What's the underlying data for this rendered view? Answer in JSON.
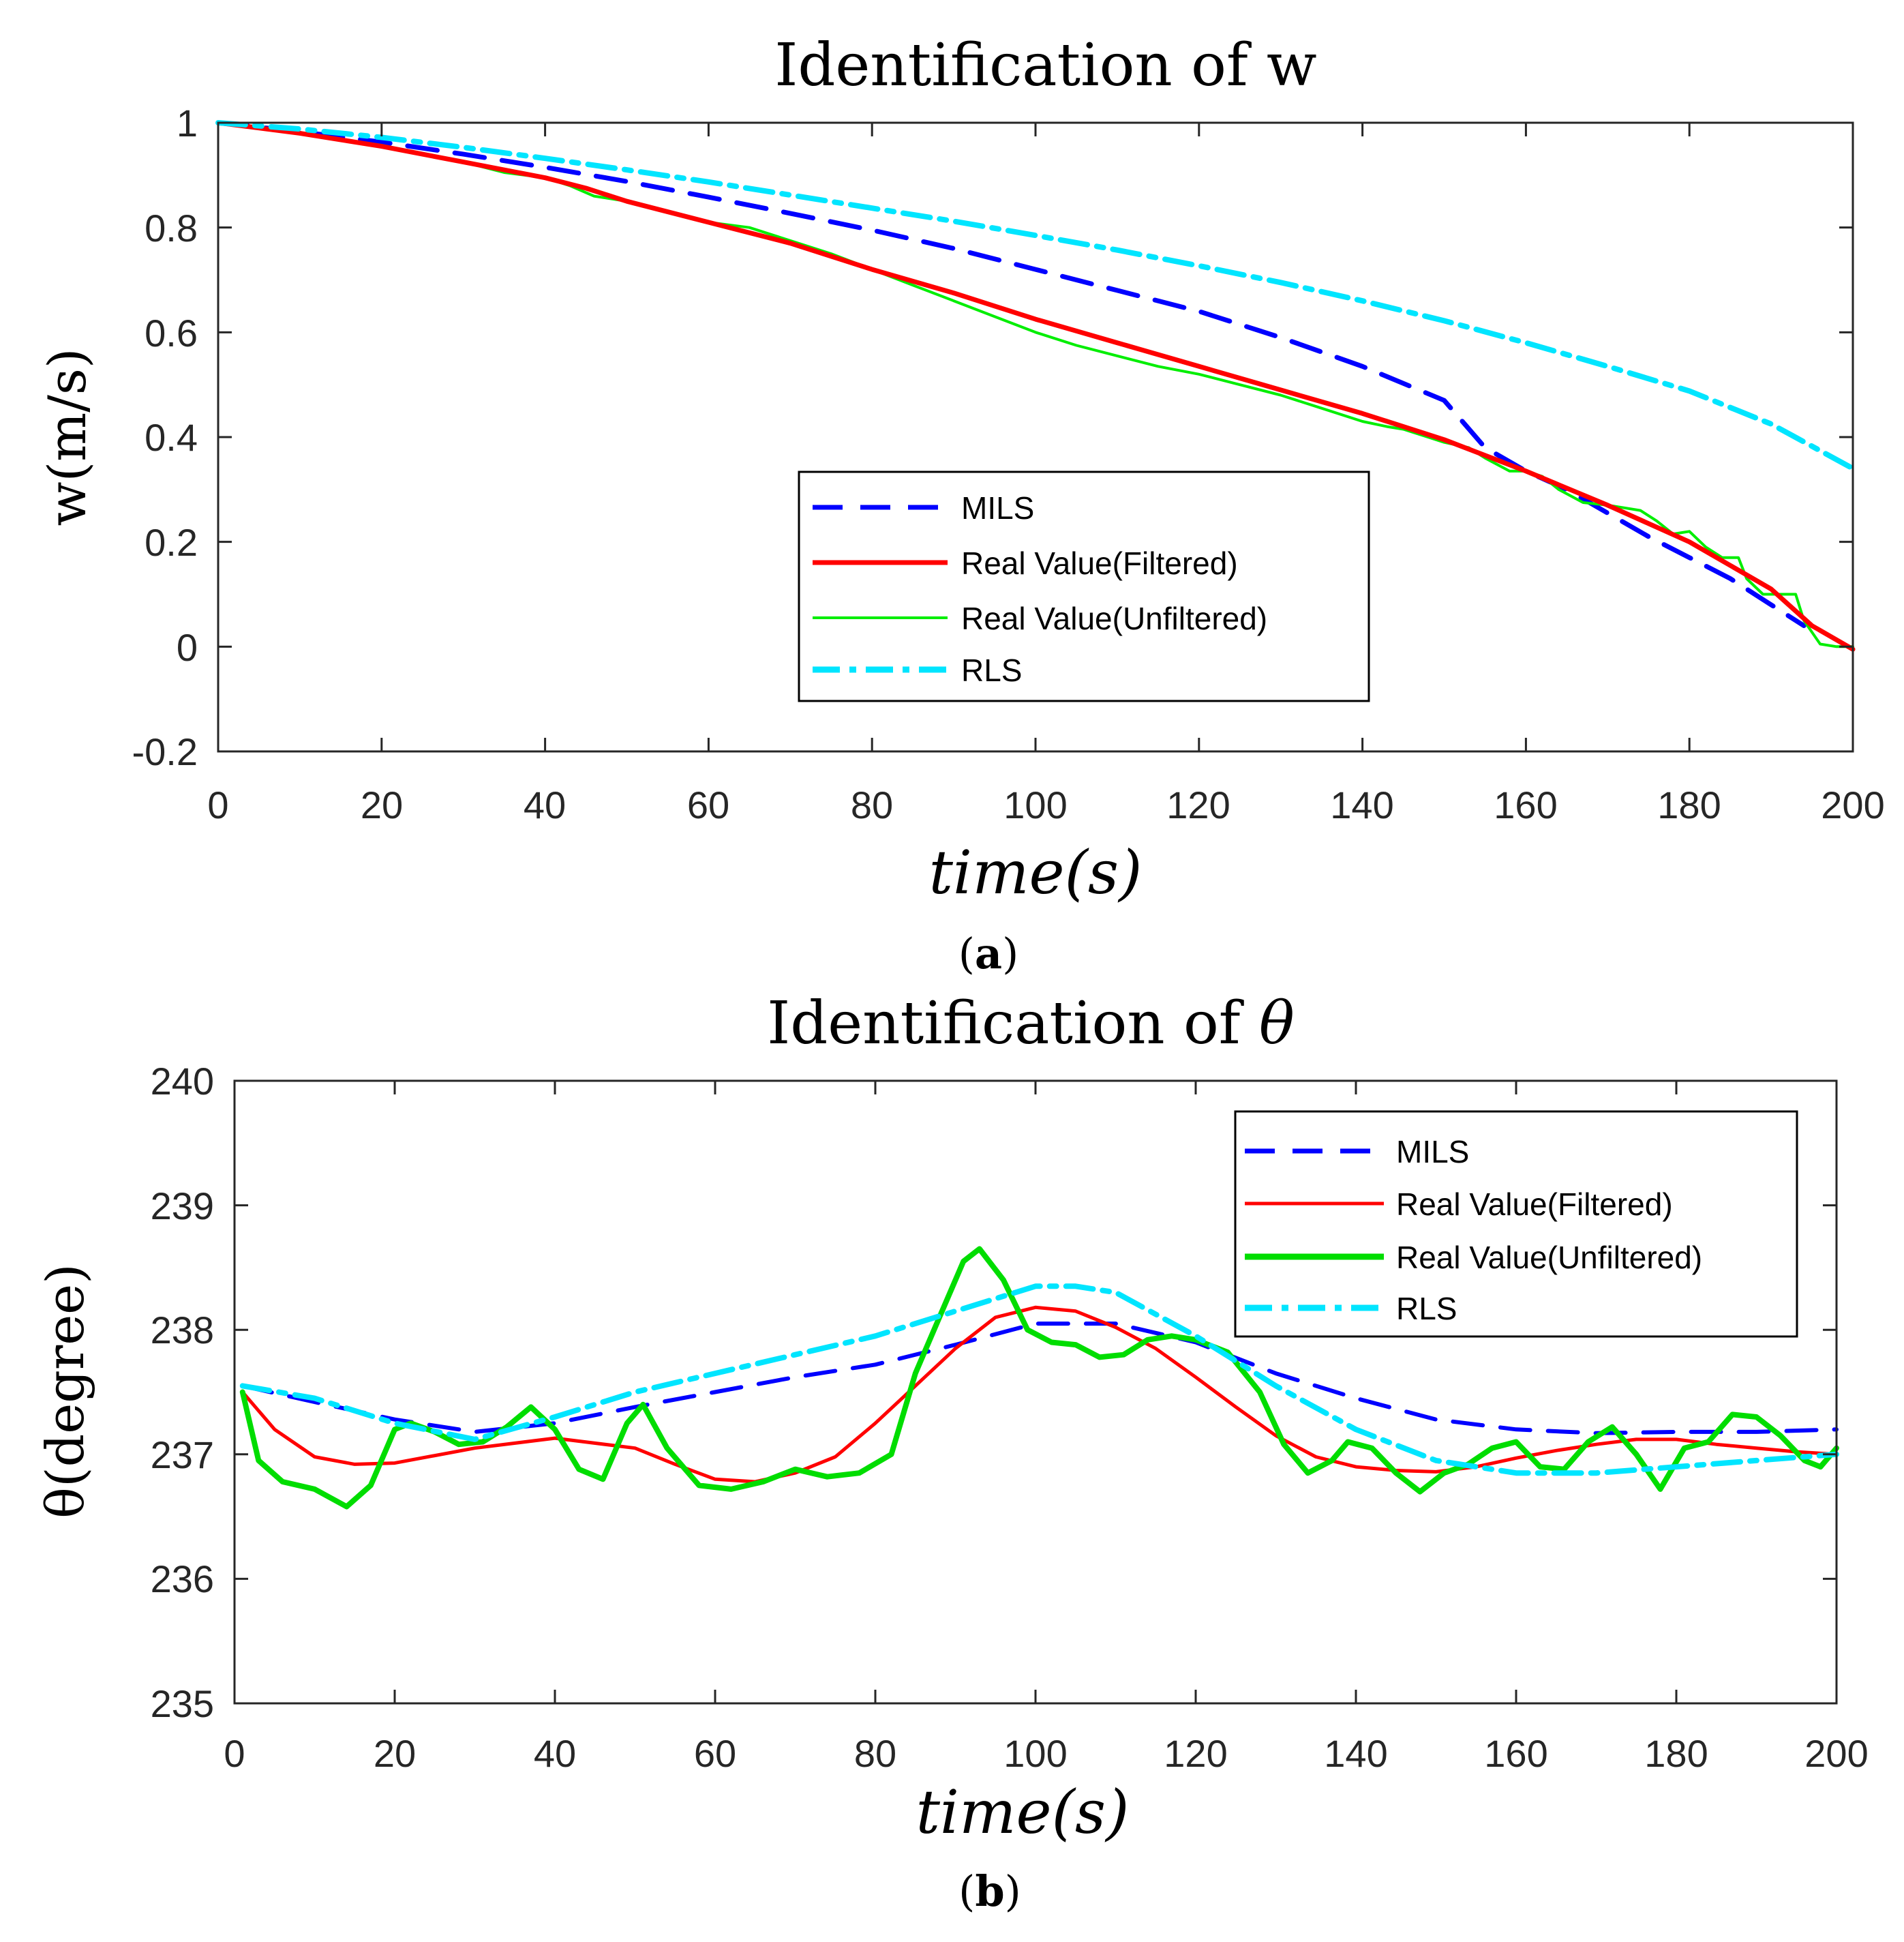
{
  "chart_data": [
    {
      "type": "line",
      "title": "Identification of w",
      "xlabel": "time(s)",
      "ylabel": "w(m/s)",
      "xlim": [
        0,
        200
      ],
      "ylim": [
        -0.2,
        1
      ],
      "xticks": [
        "0",
        "20",
        "40",
        "60",
        "80",
        "100",
        "120",
        "140",
        "160",
        "180",
        "200"
      ],
      "yticks": [
        "-0.2",
        "0",
        "0.2",
        "0.4",
        "0.6",
        "0.8",
        "1"
      ],
      "caption": "a",
      "legend_position": "center-right",
      "series": [
        {
          "name": "MILS",
          "color": "#0000ff",
          "style": "dashed",
          "x": [
            0,
            10,
            20,
            30,
            40,
            50,
            60,
            70,
            80,
            90,
            100,
            110,
            120,
            130,
            140,
            150,
            155,
            160,
            165,
            170,
            175,
            180,
            185,
            190,
            194
          ],
          "y": [
            1.0,
            0.983,
            0.963,
            0.94,
            0.915,
            0.888,
            0.858,
            0.827,
            0.795,
            0.76,
            0.72,
            0.68,
            0.64,
            0.59,
            0.535,
            0.47,
            0.38,
            0.335,
            0.3,
            0.255,
            0.21,
            0.17,
            0.13,
            0.08,
            0.04
          ]
        },
        {
          "name": "Real Value(Filtered)",
          "color": "#ff0000",
          "style": "solid",
          "x": [
            0,
            10,
            20,
            30,
            40,
            45,
            50,
            60,
            70,
            80,
            90,
            100,
            110,
            120,
            130,
            140,
            150,
            160,
            170,
            180,
            190,
            195,
            200
          ],
          "y": [
            1.0,
            0.98,
            0.955,
            0.925,
            0.895,
            0.875,
            0.85,
            0.81,
            0.77,
            0.72,
            0.675,
            0.625,
            0.58,
            0.535,
            0.49,
            0.445,
            0.395,
            0.335,
            0.27,
            0.2,
            0.11,
            0.04,
            -0.005
          ]
        },
        {
          "name": "Real Value(Unfiltered)",
          "color": "#00ee00",
          "style": "solid",
          "x": [
            0,
            10,
            20,
            30,
            35,
            40,
            43,
            46,
            50,
            55,
            60,
            65,
            70,
            75,
            80,
            85,
            90,
            95,
            100,
            105,
            110,
            115,
            120,
            125,
            130,
            135,
            140,
            143,
            145,
            148,
            150,
            153,
            155,
            158,
            160,
            162,
            164,
            167,
            170,
            172,
            174,
            176,
            178,
            180,
            182,
            184,
            186,
            187,
            189,
            191,
            193,
            194,
            196,
            198,
            200
          ],
          "y": [
            1.0,
            0.98,
            0.957,
            0.925,
            0.905,
            0.895,
            0.88,
            0.86,
            0.85,
            0.83,
            0.81,
            0.8,
            0.775,
            0.75,
            0.72,
            0.69,
            0.66,
            0.63,
            0.6,
            0.575,
            0.555,
            0.535,
            0.52,
            0.5,
            0.48,
            0.455,
            0.43,
            0.42,
            0.415,
            0.4,
            0.39,
            0.38,
            0.36,
            0.335,
            0.335,
            0.325,
            0.3,
            0.275,
            0.27,
            0.265,
            0.26,
            0.24,
            0.215,
            0.22,
            0.19,
            0.17,
            0.17,
            0.13,
            0.1,
            0.1,
            0.1,
            0.05,
            0.005,
            0.0,
            0.0
          ]
        },
        {
          "name": "RLS",
          "color": "#00e5ff",
          "style": "dashdot",
          "x": [
            0,
            10,
            20,
            30,
            40,
            50,
            60,
            70,
            80,
            90,
            100,
            110,
            120,
            130,
            140,
            150,
            160,
            170,
            180,
            190,
            200
          ],
          "y": [
            1.0,
            0.988,
            0.972,
            0.953,
            0.932,
            0.91,
            0.887,
            0.862,
            0.837,
            0.812,
            0.785,
            0.757,
            0.727,
            0.695,
            0.66,
            0.622,
            0.58,
            0.535,
            0.488,
            0.425,
            0.34
          ]
        }
      ]
    },
    {
      "type": "line",
      "title": "Identification of θ",
      "xlabel": "time(s)",
      "ylabel": "θ(degree)",
      "xlim": [
        0,
        200
      ],
      "ylim": [
        235,
        240
      ],
      "xticks": [
        "0",
        "20",
        "40",
        "60",
        "80",
        "100",
        "120",
        "140",
        "160",
        "180",
        "200"
      ],
      "yticks": [
        "235",
        "236",
        "237",
        "238",
        "239",
        "240"
      ],
      "caption": "b",
      "legend_position": "top-right",
      "series": [
        {
          "name": "MILS",
          "color": "#0000ff",
          "style": "dashed",
          "x": [
            1,
            10,
            20,
            30,
            40,
            50,
            60,
            70,
            80,
            90,
            100,
            110,
            120,
            130,
            140,
            150,
            160,
            170,
            180,
            190,
            200
          ],
          "y": [
            237.55,
            237.42,
            237.28,
            237.18,
            237.25,
            237.38,
            237.5,
            237.62,
            237.72,
            237.88,
            238.05,
            238.05,
            237.9,
            237.65,
            237.45,
            237.28,
            237.2,
            237.17,
            237.18,
            237.18,
            237.2
          ]
        },
        {
          "name": "Real Value(Filtered)",
          "color": "#ff0000",
          "style": "solid",
          "x": [
            1,
            5,
            10,
            15,
            20,
            30,
            40,
            50,
            55,
            60,
            65,
            70,
            75,
            80,
            85,
            90,
            95,
            100,
            105,
            110,
            115,
            120,
            125,
            130,
            135,
            140,
            145,
            150,
            155,
            160,
            165,
            170,
            175,
            180,
            185,
            190,
            195,
            200
          ],
          "y": [
            237.5,
            237.2,
            236.98,
            236.92,
            236.93,
            237.05,
            237.13,
            237.05,
            236.92,
            236.8,
            236.78,
            236.85,
            236.98,
            237.25,
            237.55,
            237.85,
            238.1,
            238.18,
            238.15,
            238.02,
            237.85,
            237.62,
            237.38,
            237.15,
            236.98,
            236.9,
            236.87,
            236.86,
            236.9,
            236.97,
            237.03,
            237.08,
            237.12,
            237.12,
            237.08,
            237.05,
            237.02,
            237.0
          ]
        },
        {
          "name": "Real Value(Unfiltered)",
          "color": "#00dd00",
          "style": "solid",
          "x": [
            1,
            3,
            6,
            10,
            14,
            17,
            20,
            22,
            25,
            28,
            31,
            34,
            37,
            40,
            43,
            46,
            49,
            51,
            54,
            58,
            62,
            66,
            70,
            74,
            78,
            82,
            85,
            88,
            91,
            93,
            96,
            99,
            102,
            105,
            108,
            111,
            114,
            117,
            120,
            124,
            128,
            131,
            134,
            137,
            139,
            142,
            145,
            148,
            151,
            154,
            157,
            160,
            163,
            166,
            169,
            172,
            175,
            178,
            181,
            184,
            187,
            190,
            193,
            196,
            198,
            200
          ],
          "y": [
            237.5,
            236.95,
            236.78,
            236.72,
            236.58,
            236.75,
            237.2,
            237.25,
            237.18,
            237.08,
            237.1,
            237.22,
            237.38,
            237.2,
            236.88,
            236.8,
            237.25,
            237.4,
            237.05,
            236.75,
            236.72,
            236.78,
            236.88,
            236.82,
            236.85,
            237.0,
            237.65,
            238.1,
            238.55,
            238.65,
            238.4,
            238.0,
            237.9,
            237.88,
            237.78,
            237.8,
            237.92,
            237.95,
            237.92,
            237.82,
            237.5,
            237.08,
            236.85,
            236.95,
            237.1,
            237.05,
            236.85,
            236.7,
            236.85,
            236.92,
            237.05,
            237.1,
            236.9,
            236.88,
            237.1,
            237.22,
            237.0,
            236.72,
            237.05,
            237.1,
            237.32,
            237.3,
            237.15,
            236.95,
            236.9,
            237.05
          ]
        },
        {
          "name": "RLS",
          "color": "#00e5ff",
          "style": "dashdot",
          "x": [
            1,
            10,
            20,
            30,
            40,
            50,
            60,
            70,
            80,
            90,
            100,
            105,
            110,
            120,
            130,
            140,
            150,
            160,
            170,
            180,
            190,
            200
          ],
          "y": [
            237.55,
            237.45,
            237.25,
            237.12,
            237.3,
            237.5,
            237.65,
            237.8,
            237.95,
            238.15,
            238.35,
            238.35,
            238.3,
            237.95,
            237.55,
            237.2,
            236.95,
            236.85,
            236.85,
            236.9,
            236.95,
            237.0
          ]
        }
      ]
    }
  ]
}
